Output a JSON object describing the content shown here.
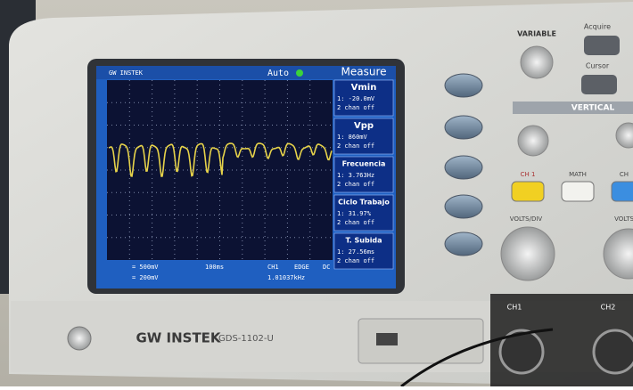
{
  "screen": {
    "status": "Auto",
    "menu_title": "Measure",
    "measurements": [
      {
        "label": "Vmin",
        "ch1": "1: -20.0mV",
        "ch2": "2 chan off"
      },
      {
        "label": "Vpp",
        "ch1": "1: 860mV",
        "ch2": "2 chan off"
      },
      {
        "label": "Frecuencia",
        "ch1": "1: 3.763Hz",
        "ch2": "2 chan off"
      },
      {
        "label": "Ciclo Trabajo",
        "ch1": "1: 31.97%",
        "ch2": "2 chan off"
      },
      {
        "label": "T. Subida",
        "ch1": "1: 27.56ms",
        "ch2": "2 chan off"
      }
    ],
    "footer": {
      "ch1_scale": "= 500mV",
      "timebase": "100ms",
      "trigger_source": "CH1",
      "trigger_type": "EDGE",
      "coupling": "DC",
      "ch2_scale": "= 200mV",
      "frequency": "1.01037kHz"
    }
  },
  "panel": {
    "brand": "GW INSTEK",
    "model": "GDS-1102-U",
    "variable": "VARIABLE",
    "acquire": "Acquire",
    "cursor": "Cursor",
    "vertical": "VERTICAL",
    "ch1_button": "CH 1",
    "math_button": "MATH",
    "ch2_button": "CH",
    "volts_div": "VOLTS/DIV",
    "volts_div_2": "VOLTS",
    "input_ch1": "CH1",
    "input_ch2": "CH2"
  }
}
